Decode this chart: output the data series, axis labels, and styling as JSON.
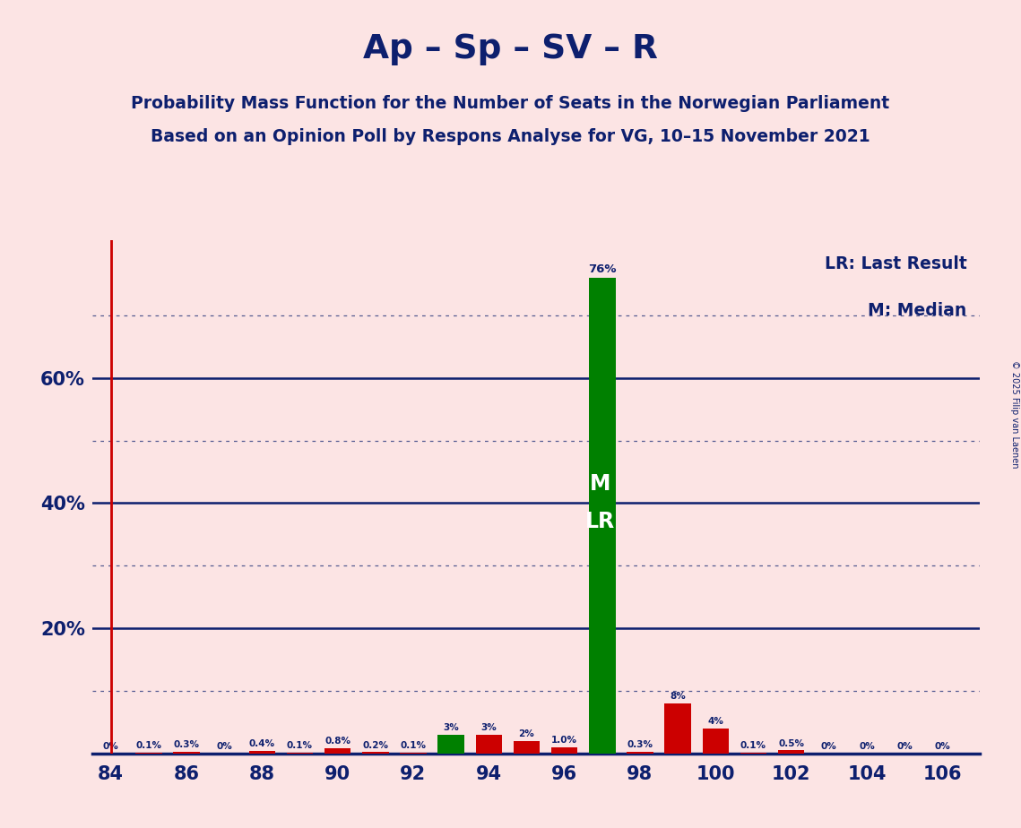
{
  "title": "Ap – Sp – SV – R",
  "subtitle1": "Probability Mass Function for the Number of Seats in the Norwegian Parliament",
  "subtitle2": "Based on an Opinion Poll by Respons Analyse for VG, 10–15 November 2021",
  "copyright": "© 2025 Filip van Laenen",
  "legend_lr": "LR: Last Result",
  "legend_m": "M: Median",
  "background_color": "#fce4e4",
  "bar_color_green": "#008000",
  "bar_color_red": "#cc0000",
  "lr_line_color": "#cc0000",
  "title_color": "#0d1f6e",
  "axis_color": "#0d1f6e",
  "grid_color": "#0d1f6e",
  "seats": [
    84,
    85,
    86,
    87,
    88,
    89,
    90,
    91,
    92,
    93,
    94,
    95,
    96,
    97,
    98,
    99,
    100,
    101,
    102,
    103,
    104,
    105,
    106
  ],
  "values": [
    0.0,
    0.1,
    0.3,
    0.0,
    0.4,
    0.1,
    0.8,
    0.2,
    0.1,
    3.0,
    3.0,
    2.0,
    1.0,
    76.0,
    0.3,
    8.0,
    4.0,
    0.1,
    0.5,
    0.0,
    0.0,
    0.0,
    0.0
  ],
  "bar_colors": [
    "#cc0000",
    "#cc0000",
    "#cc0000",
    "#cc0000",
    "#cc0000",
    "#cc0000",
    "#cc0000",
    "#cc0000",
    "#cc0000",
    "#008000",
    "#cc0000",
    "#cc0000",
    "#cc0000",
    "#008000",
    "#cc0000",
    "#cc0000",
    "#cc0000",
    "#cc0000",
    "#cc0000",
    "#cc0000",
    "#cc0000",
    "#cc0000",
    "#cc0000"
  ],
  "labels": [
    "0%",
    "0.1%",
    "0.3%",
    "0%",
    "0.4%",
    "0.1%",
    "0.8%",
    "0.2%",
    "0.1%",
    "3%",
    "3%",
    "2%",
    "1.0%",
    "76%",
    "0.3%",
    "8%",
    "4%",
    "0.1%",
    "0.5%",
    "0%",
    "0%",
    "0%",
    "0%"
  ],
  "median_seat": 97,
  "lr_seat": 97,
  "lr_line_x": 84,
  "ylim": [
    0,
    82
  ],
  "xlim": [
    83.5,
    107.0
  ],
  "xtick_positions": [
    84,
    86,
    88,
    90,
    92,
    94,
    96,
    98,
    100,
    102,
    104,
    106
  ]
}
